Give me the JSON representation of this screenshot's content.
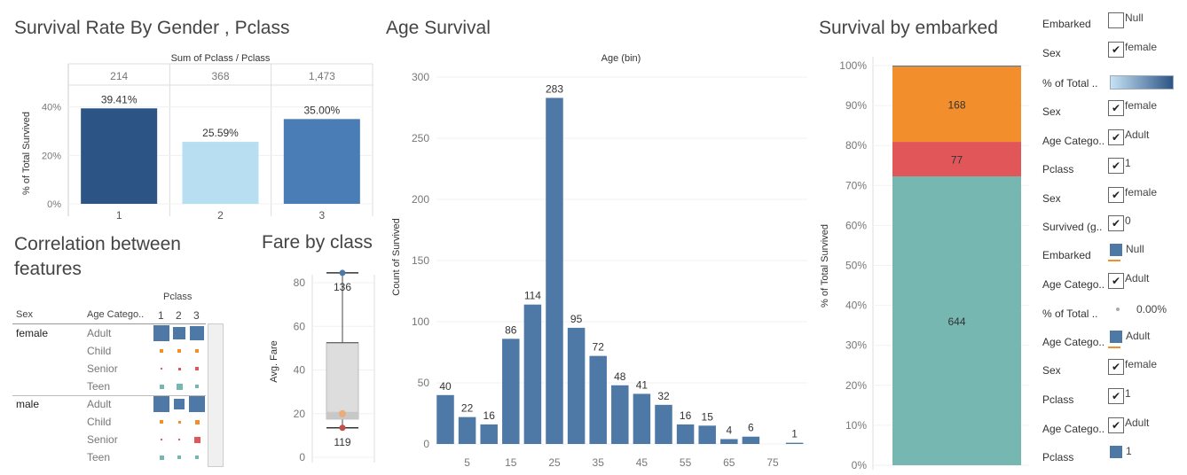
{
  "titles": {
    "gender_pclass": "Survival Rate By Gender , Pclass",
    "age": "Age Survival",
    "embarked": "Survival by embarked",
    "correlation": "Correlation between features",
    "fare": "Fare by class"
  },
  "chart_data": [
    {
      "type": "bar",
      "title": "Survival Rate By Gender , Pclass",
      "header": "Sum of Pclass  /  Pclass",
      "categories": [
        "1",
        "2",
        "3"
      ],
      "sums": [
        "214",
        "368",
        "1,473"
      ],
      "values": [
        39.41,
        25.59,
        35.0
      ],
      "value_labels": [
        "39.41%",
        "25.59%",
        "35.00%"
      ],
      "colors": [
        "#2c5585",
        "#b8def2",
        "#4a7db5"
      ],
      "ylabel": "% of Total Survived",
      "yticks": [
        "0%",
        "20%",
        "40%"
      ],
      "ylim": [
        0,
        45
      ]
    },
    {
      "type": "bar",
      "title": "Age Survival",
      "header": "Age (bin)",
      "x": [
        0,
        5,
        10,
        15,
        20,
        25,
        30,
        35,
        40,
        45,
        50,
        55,
        60,
        65,
        70,
        75,
        80
      ],
      "values": [
        40,
        22,
        16,
        86,
        114,
        283,
        95,
        72,
        48,
        41,
        32,
        16,
        15,
        4,
        6,
        0,
        1
      ],
      "xticks": [
        "5",
        "15",
        "25",
        "35",
        "45",
        "55",
        "65",
        "75"
      ],
      "yticks": [
        "0",
        "50",
        "100",
        "150",
        "200",
        "250",
        "300"
      ],
      "ylabel": "Count of Survived",
      "ylim": [
        0,
        310
      ],
      "color": "#4e79a7"
    },
    {
      "type": "bar",
      "title": "Survival by embarked",
      "stacked": true,
      "segments": [
        {
          "label": "644",
          "value": 644,
          "color": "#76b7b2"
        },
        {
          "label": "77",
          "value": 77,
          "color": "#e15759"
        },
        {
          "label": "168",
          "value": 168,
          "color": "#f28e2b"
        },
        {
          "label": "",
          "value": 2,
          "color": "#4e79a7"
        }
      ],
      "ylabel": "% of Total Survived",
      "yticks": [
        "0%",
        "10%",
        "20%",
        "30%",
        "40%",
        "50%",
        "60%",
        "70%",
        "80%",
        "90%",
        "100%"
      ]
    },
    {
      "type": "box",
      "title": "Fare by class",
      "ylabel": "Avg. Fare",
      "yticks": [
        "0",
        "20",
        "40",
        "60",
        "80"
      ],
      "ylim": [
        0,
        88
      ],
      "whisker_low": 13.5,
      "q1": 17.5,
      "median": 20,
      "q3": 52.5,
      "whisker_high": 84.5,
      "top_label": "136",
      "bottom_label": "119"
    }
  ],
  "correlation": {
    "pclass_label": "Pclass",
    "col_sex": "Sex",
    "col_age": "Age Catego..",
    "pclass_values": [
      "1",
      "2",
      "3"
    ],
    "groups": [
      {
        "sex": "female",
        "rows": [
          {
            "age": "Adult",
            "color": "#4e79a7",
            "sizes": [
              18,
              14,
              16
            ]
          },
          {
            "age": "Child",
            "color": "#f28e2b",
            "sizes": [
              4,
              4,
              4
            ]
          },
          {
            "age": "Senior",
            "color": "#e15759",
            "sizes": [
              2,
              3,
              4
            ]
          },
          {
            "age": "Teen",
            "color": "#76b7b2",
            "sizes": [
              5,
              7,
              4
            ]
          }
        ]
      },
      {
        "sex": "male",
        "rows": [
          {
            "age": "Adult",
            "color": "#4e79a7",
            "sizes": [
              18,
              12,
              18
            ]
          },
          {
            "age": "Child",
            "color": "#f28e2b",
            "sizes": [
              4,
              3,
              5
            ]
          },
          {
            "age": "Senior",
            "color": "#e15759",
            "sizes": [
              2,
              2,
              7
            ]
          },
          {
            "age": "Teen",
            "color": "#76b7b2",
            "sizes": [
              5,
              4,
              4
            ]
          }
        ]
      }
    ]
  },
  "filters": [
    {
      "label": "Embarked",
      "type": "check",
      "checked": false,
      "value": "Null"
    },
    {
      "label": "Sex",
      "type": "check",
      "checked": true,
      "value": "female"
    },
    {
      "label": "% of Total ..",
      "type": "gradient",
      "value": ""
    },
    {
      "label": "Sex",
      "type": "check",
      "checked": true,
      "value": "female"
    },
    {
      "label": "Age Catego..",
      "type": "check",
      "checked": true,
      "value": "Adult"
    },
    {
      "label": "Pclass",
      "type": "check",
      "checked": true,
      "value": "1"
    },
    {
      "label": "Sex",
      "type": "check",
      "checked": true,
      "value": "female"
    },
    {
      "label": "Survived (g..",
      "type": "check",
      "checked": true,
      "value": "0"
    },
    {
      "label": "Embarked",
      "type": "swatch",
      "color": "#4e79a7",
      "under": "#f28e2b",
      "value": "Null"
    },
    {
      "label": "Age Catego..",
      "type": "check",
      "checked": true,
      "value": "Adult"
    },
    {
      "label": "% of Total ..",
      "type": "dot",
      "value": "0.00%"
    },
    {
      "label": "Age Catego..",
      "type": "swatch",
      "color": "#4e79a7",
      "under": "#f28e2b",
      "value": "Adult"
    },
    {
      "label": "Sex",
      "type": "check",
      "checked": true,
      "value": "female"
    },
    {
      "label": "Pclass",
      "type": "check",
      "checked": true,
      "value": "1"
    },
    {
      "label": "Age Catego..",
      "type": "check",
      "checked": true,
      "value": "Adult"
    },
    {
      "label": "Pclass",
      "type": "swatch",
      "color": "#4e79a7",
      "under": "",
      "value": "1"
    }
  ]
}
